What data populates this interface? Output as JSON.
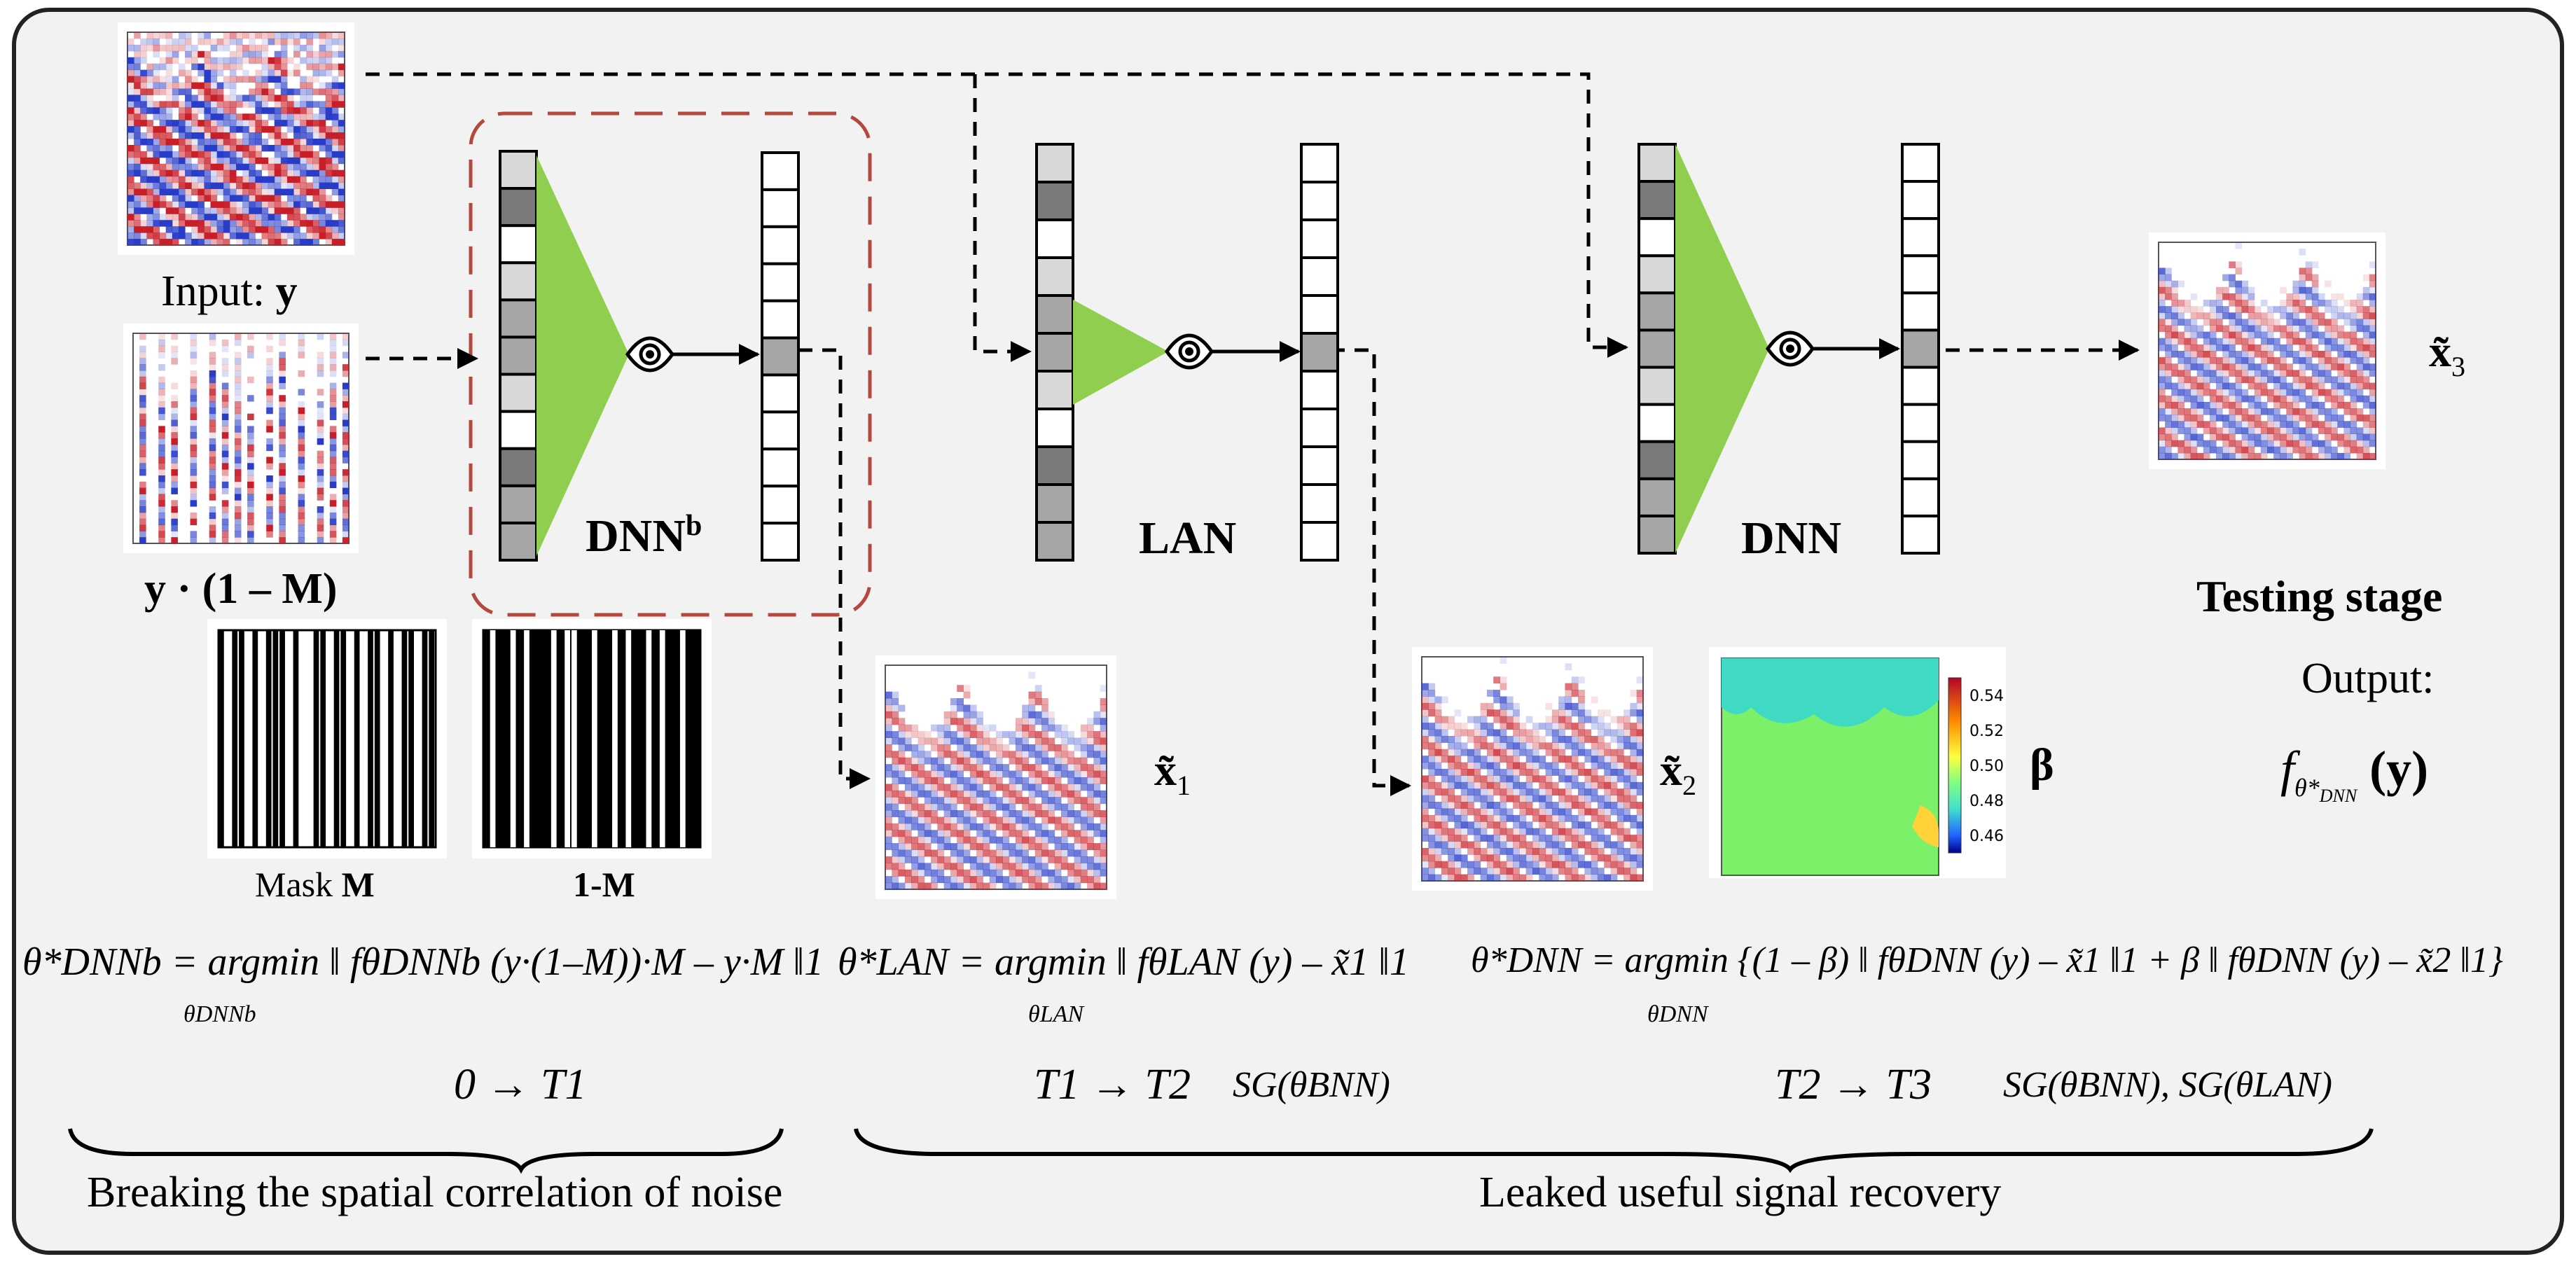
{
  "input": {
    "label_prefix": "Input:",
    "label_var": "y",
    "masked_label": "y · (1 – M)"
  },
  "masks": [
    {
      "label_prefix": "Mask",
      "label_var": "M"
    },
    {
      "label_prefix": "",
      "label_var": "1-M"
    }
  ],
  "networks": [
    {
      "name": "DNN",
      "superscript": "b"
    },
    {
      "name": "LAN",
      "superscript": ""
    },
    {
      "name": "DNN",
      "superscript": ""
    }
  ],
  "outputs": [
    {
      "var": "x̃",
      "sub": "1"
    },
    {
      "var": "x̃",
      "sub": "2"
    },
    {
      "var": "x̃",
      "sub": "3"
    }
  ],
  "beta": {
    "label": "β",
    "colorbar_ticks": [
      "0.54",
      "0.52",
      "0.50",
      "0.48",
      "0.46"
    ]
  },
  "testing": {
    "title": "Testing stage",
    "output_label": "Output:",
    "output_f": "f",
    "output_sub": "θ*",
    "output_subsub": "DNN",
    "output_arg": "(y)"
  },
  "equations": {
    "eq1": "θ*DNNb = argmin ‖ fθDNNb (y·(1–M))·M – y·M ‖1",
    "eq1_under": "θDNNb",
    "eq2": "θ*LAN = argmin ‖ fθLAN (y) – x̃1 ‖1",
    "eq2_under": "θLAN",
    "eq3": "θ*DNN = argmin {(1 – β) ‖ fθDNN (y) – x̃1 ‖1 + β ‖ fθDNN (y) – x̃2 ‖1}",
    "eq3_under": "θDNN"
  },
  "stages": [
    {
      "range": "0 → T1",
      "note": ""
    },
    {
      "range": "T1 → T2",
      "note": "SG(θBNN)"
    },
    {
      "range": "T2 → T3",
      "note": "SG(θBNN), SG(θLAN)"
    }
  ],
  "braces": [
    {
      "label": "Breaking the spatial correlation of noise"
    },
    {
      "label": "Leaked useful signal recovery"
    }
  ],
  "colors": {
    "triangle": "#8fce4f",
    "dashed_box": "#b5473d",
    "beta_field": "#7df06a",
    "beta_top": "#3fd9c4",
    "panel_bg": "#f2f2f2"
  }
}
